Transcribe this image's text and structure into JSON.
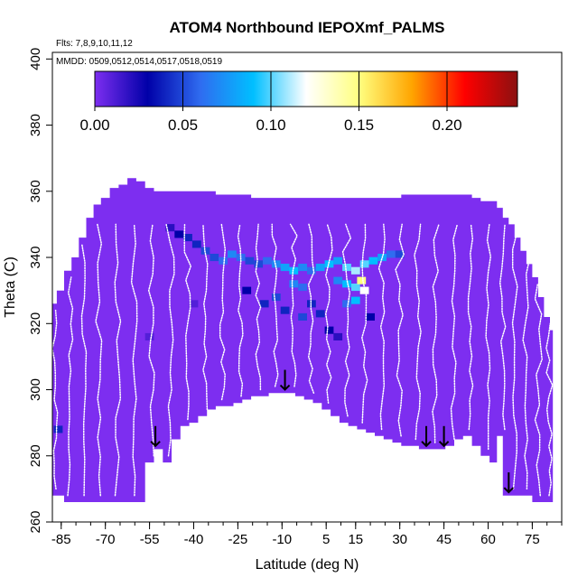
{
  "chart_data": {
    "type": "heatmap",
    "title": "ATOM4 Northbound IEPOXmf_PALMS",
    "subtitle_flights": "Flts: 7,8,9,10,11,12",
    "subtitle_dates": "MMDD: 0509,0512,0514,0517,0518,0519",
    "xlabel": "Latitude (deg N)",
    "ylabel": "Theta (C)",
    "xlim": [
      -88,
      85
    ],
    "ylim": [
      260,
      402
    ],
    "x_ticks": [
      -85,
      -70,
      -55,
      -40,
      -25,
      -10,
      5,
      15,
      30,
      45,
      60,
      75
    ],
    "y_ticks": [
      260,
      280,
      300,
      320,
      340,
      360,
      380,
      400
    ],
    "colorbar": {
      "min": 0.0,
      "max": 0.24,
      "ticks": [
        0.0,
        0.05,
        0.1,
        0.15,
        0.2
      ],
      "tick_labels": [
        "0.00",
        "0.05",
        "0.10",
        "0.15",
        "0.20"
      ],
      "stops": [
        "#7d2ef0",
        "#0000a8",
        "#2f6cf0",
        "#00bfff",
        "#ffffff",
        "#ffff80",
        "#ffa500",
        "#ff0000",
        "#8b1010"
      ]
    },
    "background_value": 0.0,
    "field_lat": [
      -88,
      -85,
      -83,
      -80,
      -78,
      -75,
      -73,
      -70,
      -67,
      -64,
      -61,
      -58,
      -55,
      -52,
      -49,
      -46,
      -43,
      -40,
      -37,
      -34,
      -31,
      -28,
      -25,
      -22,
      -19,
      -16,
      -13,
      -10,
      -7,
      -4,
      -1,
      2,
      5,
      8,
      11,
      14,
      17,
      20,
      23,
      26,
      29,
      32,
      35,
      38,
      41,
      44,
      47,
      50,
      53,
      56,
      59,
      62,
      64,
      66,
      68,
      70,
      72,
      74,
      76,
      78,
      80,
      82
    ],
    "field_top": [
      326,
      330,
      336,
      340,
      346,
      352,
      356,
      358,
      361,
      362,
      364,
      363,
      361,
      360,
      360,
      360,
      360,
      360,
      360,
      360,
      359,
      359,
      359,
      359,
      358,
      358,
      358,
      358,
      358,
      358,
      358,
      358,
      358,
      358,
      358,
      358,
      358,
      358,
      358,
      358,
      358,
      359,
      359,
      359,
      359,
      359,
      359,
      359,
      359,
      358,
      357,
      357,
      355,
      352,
      350,
      346,
      342,
      338,
      334,
      328,
      322,
      318
    ],
    "field_bottom": [
      268,
      268,
      266,
      266,
      266,
      266,
      266,
      266,
      266,
      266,
      266,
      266,
      278,
      282,
      278,
      285,
      289,
      290,
      292,
      294,
      295,
      295,
      296,
      297,
      298,
      298,
      299,
      299,
      299,
      298,
      297,
      296,
      294,
      292,
      290,
      289,
      288,
      287,
      286,
      285,
      284,
      283,
      283,
      282,
      282,
      282,
      283,
      285,
      286,
      283,
      280,
      278,
      286,
      268,
      268,
      268,
      268,
      268,
      266,
      266,
      266,
      266
    ],
    "cells": [
      {
        "lat": -48,
        "theta": 349,
        "value": 0.02
      },
      {
        "lat": -45,
        "theta": 347,
        "value": 0.03
      },
      {
        "lat": -42,
        "theta": 346,
        "value": 0.04
      },
      {
        "lat": -39,
        "theta": 344,
        "value": 0.04
      },
      {
        "lat": -36,
        "theta": 342,
        "value": 0.05
      },
      {
        "lat": -33,
        "theta": 340,
        "value": 0.05
      },
      {
        "lat": -30,
        "theta": 339,
        "value": 0.06
      },
      {
        "lat": -27,
        "theta": 341,
        "value": 0.07
      },
      {
        "lat": -24,
        "theta": 340,
        "value": 0.06
      },
      {
        "lat": -21,
        "theta": 339,
        "value": 0.05
      },
      {
        "lat": -18,
        "theta": 338,
        "value": 0.05
      },
      {
        "lat": -15,
        "theta": 339,
        "value": 0.06
      },
      {
        "lat": -12,
        "theta": 338,
        "value": 0.07
      },
      {
        "lat": -9,
        "theta": 337,
        "value": 0.08
      },
      {
        "lat": -6,
        "theta": 336,
        "value": 0.09
      },
      {
        "lat": -3,
        "theta": 337,
        "value": 0.07
      },
      {
        "lat": 0,
        "theta": 336,
        "value": 0.06
      },
      {
        "lat": 3,
        "theta": 337,
        "value": 0.08
      },
      {
        "lat": 6,
        "theta": 338,
        "value": 0.09
      },
      {
        "lat": 9,
        "theta": 339,
        "value": 0.08
      },
      {
        "lat": 12,
        "theta": 337,
        "value": 0.1
      },
      {
        "lat": 15,
        "theta": 336,
        "value": 0.11
      },
      {
        "lat": 18,
        "theta": 338,
        "value": 0.1
      },
      {
        "lat": 21,
        "theta": 339,
        "value": 0.09
      },
      {
        "lat": 24,
        "theta": 340,
        "value": 0.08
      },
      {
        "lat": 27,
        "theta": 341,
        "value": 0.06
      },
      {
        "lat": 30,
        "theta": 341,
        "value": 0.05
      },
      {
        "lat": -6,
        "theta": 332,
        "value": 0.07
      },
      {
        "lat": -3,
        "theta": 331,
        "value": 0.06
      },
      {
        "lat": 9,
        "theta": 333,
        "value": 0.07
      },
      {
        "lat": 12,
        "theta": 332,
        "value": 0.09
      },
      {
        "lat": 15,
        "theta": 331,
        "value": 0.1
      },
      {
        "lat": 17,
        "theta": 333,
        "value": 0.15
      },
      {
        "lat": 18,
        "theta": 330,
        "value": 0.12
      },
      {
        "lat": 15,
        "theta": 327,
        "value": 0.09
      },
      {
        "lat": 12,
        "theta": 326,
        "value": 0.06
      },
      {
        "lat": -22,
        "theta": 330,
        "value": 0.03
      },
      {
        "lat": -16,
        "theta": 326,
        "value": 0.04
      },
      {
        "lat": -12,
        "theta": 328,
        "value": 0.05
      },
      {
        "lat": -9,
        "theta": 324,
        "value": 0.04
      },
      {
        "lat": -3,
        "theta": 322,
        "value": 0.05
      },
      {
        "lat": 0,
        "theta": 326,
        "value": 0.04
      },
      {
        "lat": 3,
        "theta": 323,
        "value": 0.04
      },
      {
        "lat": 6,
        "theta": 318,
        "value": 0.03
      },
      {
        "lat": 9,
        "theta": 316,
        "value": 0.02
      },
      {
        "lat": 20,
        "theta": 322,
        "value": 0.03
      },
      {
        "lat": -40,
        "theta": 326,
        "value": 0.01
      },
      {
        "lat": -55,
        "theta": 316,
        "value": 0.01
      },
      {
        "lat": -86,
        "theta": 288,
        "value": 0.04
      }
    ],
    "arrows_lat": [
      -53,
      -9,
      39,
      45,
      67
    ]
  }
}
